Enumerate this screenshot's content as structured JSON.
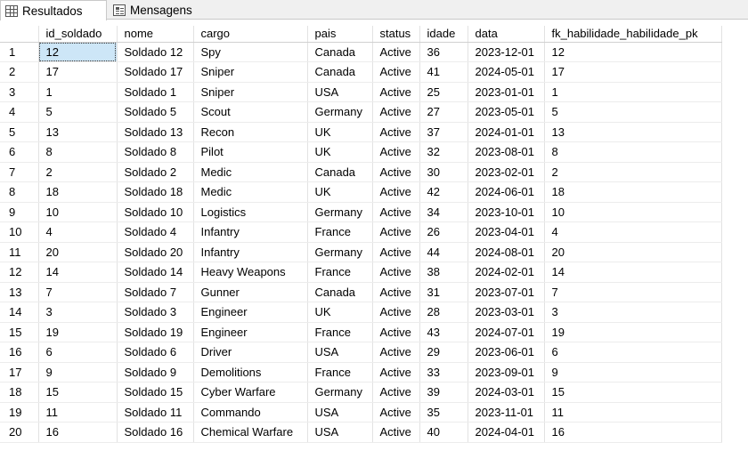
{
  "tabs": [
    {
      "label": "Resultados",
      "icon": "grid-icon",
      "active": true
    },
    {
      "label": "Mensagens",
      "icon": "messages-icon",
      "active": false
    }
  ],
  "columns": [
    "id_soldado",
    "nome",
    "cargo",
    "pais",
    "status",
    "idade",
    "data",
    "fk_habilidade_habilidade_pk"
  ],
  "rows": [
    [
      "12",
      "Soldado 12",
      "Spy",
      "Canada",
      "Active",
      "36",
      "2023-12-01",
      "12"
    ],
    [
      "17",
      "Soldado 17",
      "Sniper",
      "Canada",
      "Active",
      "41",
      "2024-05-01",
      "17"
    ],
    [
      "1",
      "Soldado 1",
      "Sniper",
      "USA",
      "Active",
      "25",
      "2023-01-01",
      "1"
    ],
    [
      "5",
      "Soldado 5",
      "Scout",
      "Germany",
      "Active",
      "27",
      "2023-05-01",
      "5"
    ],
    [
      "13",
      "Soldado 13",
      "Recon",
      "UK",
      "Active",
      "37",
      "2024-01-01",
      "13"
    ],
    [
      "8",
      "Soldado 8",
      "Pilot",
      "UK",
      "Active",
      "32",
      "2023-08-01",
      "8"
    ],
    [
      "2",
      "Soldado 2",
      "Medic",
      "Canada",
      "Active",
      "30",
      "2023-02-01",
      "2"
    ],
    [
      "18",
      "Soldado 18",
      "Medic",
      "UK",
      "Active",
      "42",
      "2024-06-01",
      "18"
    ],
    [
      "10",
      "Soldado 10",
      "Logistics",
      "Germany",
      "Active",
      "34",
      "2023-10-01",
      "10"
    ],
    [
      "4",
      "Soldado 4",
      "Infantry",
      "France",
      "Active",
      "26",
      "2023-04-01",
      "4"
    ],
    [
      "20",
      "Soldado 20",
      "Infantry",
      "Germany",
      "Active",
      "44",
      "2024-08-01",
      "20"
    ],
    [
      "14",
      "Soldado 14",
      "Heavy Weapons",
      "France",
      "Active",
      "38",
      "2024-02-01",
      "14"
    ],
    [
      "7",
      "Soldado 7",
      "Gunner",
      "Canada",
      "Active",
      "31",
      "2023-07-01",
      "7"
    ],
    [
      "3",
      "Soldado 3",
      "Engineer",
      "UK",
      "Active",
      "28",
      "2023-03-01",
      "3"
    ],
    [
      "19",
      "Soldado 19",
      "Engineer",
      "France",
      "Active",
      "43",
      "2024-07-01",
      "19"
    ],
    [
      "6",
      "Soldado 6",
      "Driver",
      "USA",
      "Active",
      "29",
      "2023-06-01",
      "6"
    ],
    [
      "9",
      "Soldado 9",
      "Demolitions",
      "France",
      "Active",
      "33",
      "2023-09-01",
      "9"
    ],
    [
      "15",
      "Soldado 15",
      "Cyber Warfare",
      "Germany",
      "Active",
      "39",
      "2024-03-01",
      "15"
    ],
    [
      "11",
      "Soldado 11",
      "Commando",
      "USA",
      "Active",
      "35",
      "2023-11-01",
      "11"
    ],
    [
      "16",
      "Soldado 16",
      "Chemical Warfare",
      "USA",
      "Active",
      "40",
      "2024-04-01",
      "16"
    ]
  ],
  "colors": {
    "selection": "#cde6f7",
    "tabbar": "#f0f0f0"
  }
}
